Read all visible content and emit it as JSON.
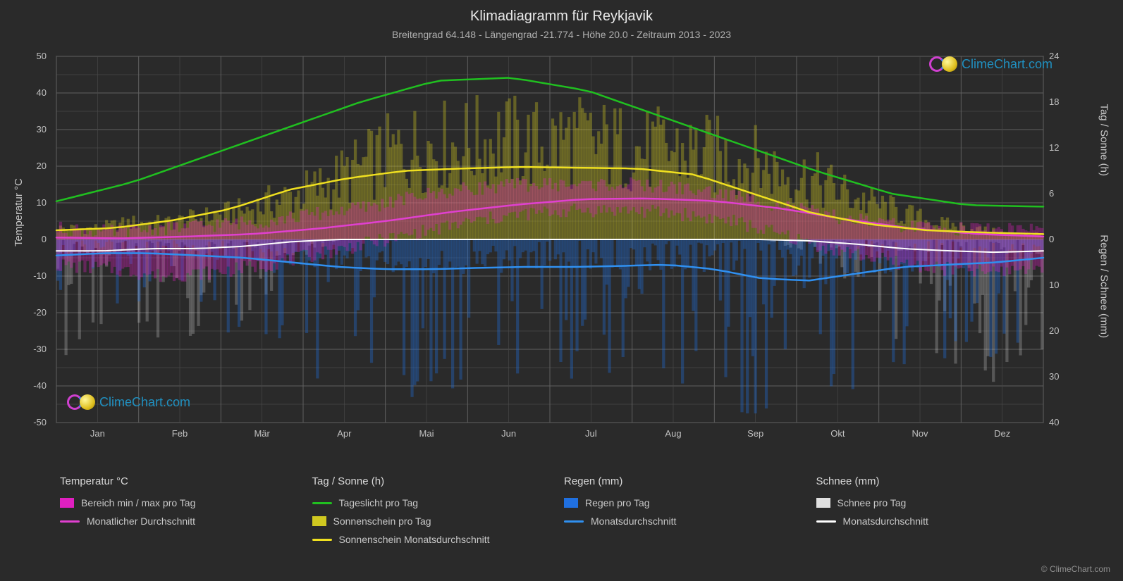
{
  "title": "Klimadiagramm für Reykjavik",
  "subtitle": "Breitengrad 64.148 - Längengrad -21.774 - Höhe 20.0 - Zeitraum 2013 - 2023",
  "axis_left_label": "Temperatur °C",
  "axis_right_top_label": "Tag / Sonne (h)",
  "axis_right_bot_label": "Regen / Schnee (mm)",
  "brand": "ClimeChart.com",
  "brand_color": "#2090c0",
  "copyright": "© ClimeChart.com",
  "chart": {
    "background_color": "#2a2a2a",
    "plot_bg": "#2a2a2a",
    "grid_color": "#606060",
    "grid_color_minor": "#484848",
    "border_color": "#808080",
    "xlim": [
      0,
      12
    ],
    "months": [
      "Jan",
      "Feb",
      "Mär",
      "Apr",
      "Mai",
      "Jun",
      "Jul",
      "Aug",
      "Sep",
      "Okt",
      "Nov",
      "Dez"
    ],
    "left_axis": {
      "min": -50,
      "max": 50,
      "tick_step": 10,
      "ticks": [
        -50,
        -40,
        -30,
        -20,
        -10,
        0,
        10,
        20,
        30,
        40,
        50
      ]
    },
    "right_axis_top": {
      "min": 0,
      "max": 24,
      "tick_step": 6,
      "ticks": [
        0,
        6,
        12,
        18,
        24
      ]
    },
    "right_axis_bot": {
      "min": 0,
      "max": 40,
      "tick_step": 10,
      "ticks": [
        0,
        10,
        20,
        30,
        40
      ]
    },
    "series": {
      "daylight": {
        "label": "Tageslicht pro Tag",
        "color": "#20c020",
        "width": 2.5,
        "values_hours": [
          5.0,
          7.5,
          11.0,
          14.5,
          18.0,
          20.8,
          21.2,
          19.5,
          16.0,
          12.5,
          9.0,
          6.0,
          4.5,
          4.3
        ]
      },
      "sunshine_avg": {
        "label": "Sonnenschein Monatsdurchschnitt",
        "color": "#f0e020",
        "width": 2.5,
        "values_hours": [
          1.2,
          1.5,
          2.5,
          4.0,
          6.5,
          8.0,
          9.0,
          9.3,
          9.5,
          9.4,
          9.3,
          8.5,
          6.0,
          3.5,
          2.0,
          1.2,
          0.9,
          0.7
        ]
      },
      "temp_avg": {
        "label": "Monatlicher Durchschnitt",
        "color": "#e040d0",
        "width": 2.5,
        "values_c": [
          0.5,
          0.3,
          0.8,
          1.5,
          3.0,
          5.0,
          7.5,
          9.5,
          11.0,
          11.2,
          10.5,
          8.5,
          5.5,
          3.0,
          1.5,
          0.8
        ]
      },
      "temp_range": {
        "label": "Bereich min / max pro Tag",
        "color": "#e020c0",
        "min_c": [
          -7,
          -8,
          -10,
          -9,
          -7,
          -4,
          -1,
          2,
          5,
          7,
          8,
          8,
          7,
          5,
          1,
          -3,
          -6,
          -8,
          -9,
          -7
        ],
        "max_c": [
          3,
          2,
          3,
          4,
          5,
          7,
          9,
          12,
          14,
          15,
          15,
          15,
          14,
          12,
          9,
          6,
          4,
          3,
          3,
          3
        ]
      },
      "sunshine_bars": {
        "label": "Sonnenschein pro Tag",
        "color": "#d0c820",
        "daily_max_hours": [
          2,
          2,
          3,
          3,
          4,
          5,
          7,
          9,
          12,
          15,
          17,
          17,
          18,
          17,
          18,
          17,
          16,
          16,
          15,
          14,
          12,
          10,
          7,
          5,
          3,
          2,
          1,
          1
        ]
      },
      "rain_avg": {
        "label": "Monatsdurchschnitt",
        "color": "#3090f0",
        "width": 2.5,
        "values_mm": [
          3.5,
          3.0,
          3.0,
          3.5,
          4.0,
          5.0,
          6.0,
          6.5,
          6.5,
          6.2,
          6.0,
          6.0,
          5.8,
          5.5,
          6.5,
          8.5,
          9.0,
          7.5,
          6.0,
          5.5,
          5.0,
          4.0
        ]
      },
      "rain_bars": {
        "label": "Regen pro Tag",
        "color": "#2070e0"
      },
      "snow_avg": {
        "label": "Monatsdurchschnitt",
        "color": "#ffffff",
        "width": 2.0,
        "values_mm": [
          2.5,
          2.5,
          2.0,
          2.0,
          1.5,
          0.5,
          0.0,
          0.0,
          0.0,
          0.0,
          0.0,
          0.0,
          0.0,
          0.0,
          0.0,
          0.0,
          0.3,
          1.0,
          2.0,
          2.5,
          2.8,
          2.5
        ]
      },
      "snow_bars": {
        "label": "Schnee pro Tag",
        "color": "#e0e0e0"
      }
    }
  },
  "legend": {
    "col1": {
      "header": "Temperatur °C",
      "items": [
        {
          "type": "swatch",
          "color": "#e020c0",
          "label": "Bereich min / max pro Tag"
        },
        {
          "type": "line",
          "color": "#e040d0",
          "label": "Monatlicher Durchschnitt"
        }
      ]
    },
    "col2": {
      "header": "Tag / Sonne (h)",
      "items": [
        {
          "type": "line",
          "color": "#20c020",
          "label": "Tageslicht pro Tag"
        },
        {
          "type": "swatch",
          "color": "#d0c820",
          "label": "Sonnenschein pro Tag"
        },
        {
          "type": "line",
          "color": "#f0e020",
          "label": "Sonnenschein Monatsdurchschnitt"
        }
      ]
    },
    "col3": {
      "header": "Regen (mm)",
      "items": [
        {
          "type": "swatch",
          "color": "#2070e0",
          "label": "Regen pro Tag"
        },
        {
          "type": "line",
          "color": "#3090f0",
          "label": "Monatsdurchschnitt"
        }
      ]
    },
    "col4": {
      "header": "Schnee (mm)",
      "items": [
        {
          "type": "swatch",
          "color": "#e0e0e0",
          "label": "Schnee pro Tag"
        },
        {
          "type": "line",
          "color": "#ffffff",
          "label": "Monatsdurchschnitt"
        }
      ]
    }
  }
}
